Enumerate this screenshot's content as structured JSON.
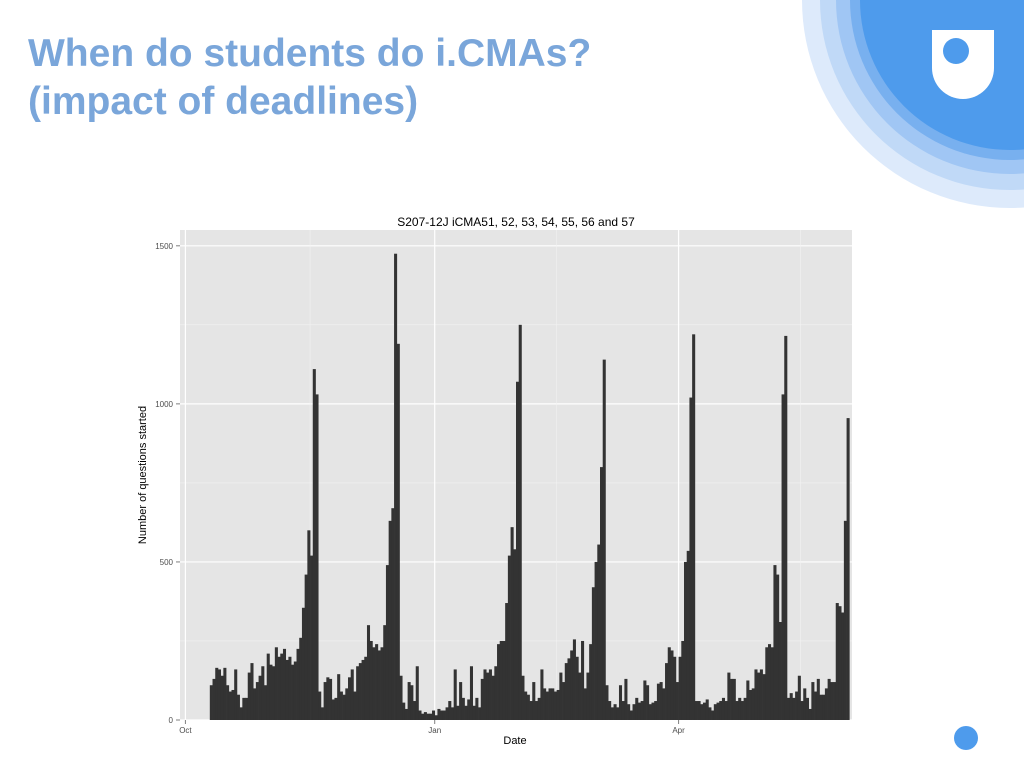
{
  "slide": {
    "title_line1": "When do students do i.CMAs?",
    "title_line2": "(impact of deadlines)"
  },
  "colors": {
    "title": "#7aa6da",
    "logo_blue": "#4e9bec",
    "panel_background": "#e5e5e5",
    "bars": "#333333",
    "gridlines": "#ffffff"
  },
  "icons": [
    "open-university-logo-icon",
    "decorative-circle-icon"
  ],
  "chart_data": {
    "type": "bar",
    "title": "S207-12J iCMA51, 52, 53, 54, 55, 56 and 57",
    "xlabel": "Date",
    "ylabel": "Number of questions started",
    "ylim": [
      0,
      1550
    ],
    "yticks": [
      0,
      500,
      1000,
      1500
    ],
    "ytick_labels": [
      "0",
      "500",
      "1000",
      "1500"
    ],
    "xticks": [
      {
        "label": "Oct",
        "day": 0
      },
      {
        "label": "Jan",
        "day": 92
      },
      {
        "label": "Apr",
        "day": 182
      }
    ],
    "x_unit": "days from 1 Oct 2012",
    "xlim": [
      -2,
      246
    ],
    "grid": true,
    "legend": "none",
    "start_day": 9,
    "values": [
      110,
      130,
      165,
      160,
      140,
      165,
      110,
      90,
      95,
      160,
      80,
      40,
      70,
      70,
      150,
      180,
      100,
      120,
      140,
      170,
      110,
      210,
      175,
      170,
      230,
      200,
      210,
      225,
      190,
      200,
      175,
      185,
      225,
      260,
      355,
      460,
      600,
      520,
      1110,
      1030,
      90,
      40,
      120,
      135,
      130,
      65,
      70,
      145,
      90,
      80,
      100,
      135,
      160,
      90,
      170,
      180,
      190,
      200,
      300,
      250,
      230,
      240,
      220,
      230,
      300,
      490,
      630,
      670,
      1475,
      1190,
      140,
      55,
      35,
      120,
      110,
      60,
      170,
      30,
      20,
      25,
      20,
      20,
      30,
      15,
      35,
      30,
      30,
      40,
      60,
      40,
      160,
      45,
      120,
      70,
      45,
      65,
      170,
      45,
      70,
      40,
      130,
      160,
      150,
      160,
      140,
      170,
      240,
      250,
      250,
      370,
      520,
      610,
      540,
      1070,
      1250,
      140,
      90,
      80,
      60,
      120,
      60,
      70,
      160,
      100,
      90,
      100,
      100,
      90,
      95,
      150,
      120,
      180,
      195,
      220,
      255,
      200,
      150,
      250,
      100,
      150,
      240,
      420,
      500,
      555,
      800,
      1140,
      110,
      60,
      40,
      50,
      40,
      110,
      60,
      130,
      50,
      30,
      50,
      70,
      55,
      60,
      125,
      110,
      50,
      55,
      60,
      115,
      120,
      100,
      180,
      230,
      220,
      200,
      120,
      200,
      250,
      500,
      535,
      1020,
      1220,
      60,
      60,
      50,
      55,
      65,
      40,
      30,
      50,
      55,
      60,
      70,
      60,
      150,
      130,
      130,
      60,
      70,
      60,
      70,
      125,
      95,
      100,
      160,
      150,
      160,
      145,
      230,
      240,
      230,
      490,
      460,
      310,
      1030,
      1215,
      70,
      85,
      70,
      90,
      140,
      60,
      100,
      70,
      35,
      120,
      90,
      130,
      80,
      80,
      100,
      130,
      120,
      120,
      370,
      360,
      340,
      630,
      955
    ]
  }
}
